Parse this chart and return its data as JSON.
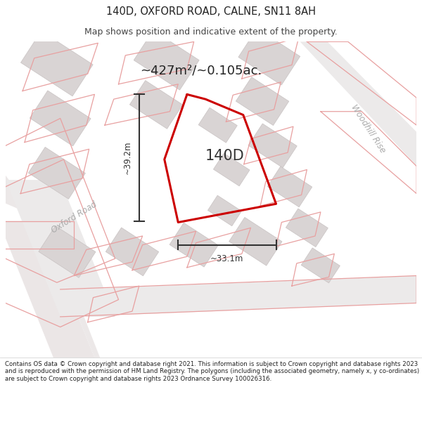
{
  "title": "140D, OXFORD ROAD, CALNE, SN11 8AH",
  "subtitle": "Map shows position and indicative extent of the property.",
  "area_label": "~427m²/~0.105ac.",
  "plot_label": "140D",
  "dim_height": "~39.2m",
  "dim_width": "~33.1m",
  "road_label_1": "Oxford Road",
  "road_label_2": "Woodhill Rise",
  "footer": "Contains OS data © Crown copyright and database right 2021. This information is subject to Crown copyright and database rights 2023 and is reproduced with the permission of HM Land Registry. The polygons (including the associated geometry, namely x, y co-ordinates) are subject to Crown copyright and database rights 2023 Ordnance Survey 100026316.",
  "title_color": "#222222",
  "subtitle_color": "#444444",
  "map_bg": "#f7f4f4",
  "building_fill": "#d9d4d4",
  "building_edge": "#c8c2c2",
  "pink": "#e8a0a0",
  "plot_red": "#cc0000",
  "dim_color": "#333333",
  "road_label_color": "#aaaaaa",
  "label_color": "#333333",
  "footer_color": "#222222",
  "fig_width": 6.0,
  "fig_height": 6.25,
  "title_fontsize": 10.5,
  "subtitle_fontsize": 9.0,
  "area_fontsize": 13,
  "plot_label_fontsize": 15,
  "dim_fontsize": 8.5,
  "road_fontsize": 8.5,
  "footer_fontsize": 6.2
}
